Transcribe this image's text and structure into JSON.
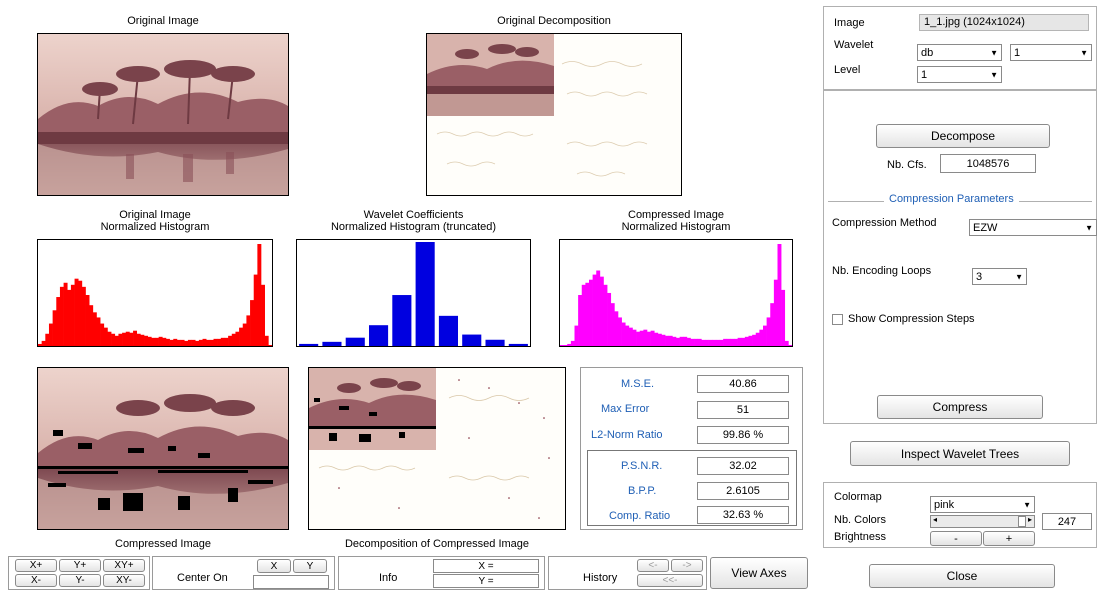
{
  "captions": {
    "original_image": "Original Image",
    "original_decomposition": "Original Decomposition",
    "orig_hist_1": "Original Image",
    "orig_hist_2": "Normalized Histogram",
    "coef_hist_1": "Wavelet Coefficients",
    "coef_hist_2": "Normalized Histogram (truncated)",
    "comp_hist_1": "Compressed Image",
    "comp_hist_2": "Normalized Histogram",
    "compressed_image": "Compressed Image",
    "decomp_compressed": "Decomposition of Compressed Image"
  },
  "metrics": {
    "mse_label": "M.S.E.",
    "mse": "40.86",
    "maxerr_label": "Max Error",
    "maxerr": "51",
    "l2_label": "L2-Norm Ratio",
    "l2": "99.86 %",
    "psnr_label": "P.S.N.R.",
    "psnr": "32.02",
    "bpp_label": "B.P.P.",
    "bpp": "2.6105",
    "ratio_label": "Comp. Ratio",
    "ratio": "32.63 %"
  },
  "panel": {
    "image_label": "Image",
    "image_value": "1_1.jpg  (1024x1024)",
    "wavelet_label": "Wavelet",
    "wavelet_family": "db",
    "wavelet_order": "1",
    "level_label": "Level",
    "level_value": "1",
    "decompose_button": "Decompose",
    "nbcfs_label": "Nb. Cfs.",
    "nbcfs_value": "1048576",
    "compression_params_title": "Compression Parameters",
    "method_label": "Compression Method",
    "method_value": "EZW",
    "loops_label": "Nb. Encoding Loops",
    "loops_value": "3",
    "show_steps_label": "Show Compression Steps",
    "compress_button": "Compress",
    "inspect_button": "Inspect Wavelet Trees",
    "colormap_label": "Colormap",
    "colormap_value": "pink",
    "nbcolors_label": "Nb. Colors",
    "nbcolors_value": "247",
    "brightness_label": "Brightness",
    "bright_minus": "-",
    "bright_plus": "+",
    "close_button": "Close",
    "nbcolors_fraction": 0.97
  },
  "toolbar": {
    "xplus": "X+",
    "yplus": "Y+",
    "xyplus": "XY+",
    "xminus": "X-",
    "yminus": "Y-",
    "xyminus": "XY-",
    "center_on": "Center On",
    "x_btn": "X",
    "y_btn": "Y",
    "info": "Info",
    "x_eq": "X =",
    "y_eq": "Y =",
    "history": "History",
    "hist_back": "<-",
    "hist_fwd": "->",
    "hist_first": "<<-",
    "view_axes": "View Axes"
  },
  "colors": {
    "red_hist": "#ff0000",
    "blue_hist": "#0000e0",
    "magenta_hist": "#ff00ff",
    "image_sky": "#e8c8c0",
    "image_water": "#8a4a52",
    "blue_text": "#1f5fb5"
  },
  "chart_data": [
    {
      "type": "area",
      "title": "Original Image Normalized Histogram",
      "x": [
        0,
        1,
        2,
        3,
        4,
        5,
        6,
        7,
        8,
        9,
        10,
        11,
        12,
        13,
        14,
        15,
        16,
        17,
        18,
        19,
        20,
        21,
        22,
        23,
        24,
        25,
        26,
        27,
        28,
        29,
        30,
        31,
        32,
        33,
        34,
        35,
        36,
        37,
        38,
        39,
        40,
        41,
        42,
        43,
        44,
        45,
        46,
        47,
        48,
        49,
        50,
        51,
        52,
        53,
        54,
        55,
        56,
        57,
        58,
        59,
        60,
        61,
        62,
        63
      ],
      "values": [
        0.02,
        0.05,
        0.12,
        0.22,
        0.35,
        0.48,
        0.58,
        0.62,
        0.55,
        0.6,
        0.66,
        0.64,
        0.58,
        0.5,
        0.4,
        0.33,
        0.28,
        0.22,
        0.18,
        0.14,
        0.12,
        0.1,
        0.12,
        0.13,
        0.14,
        0.13,
        0.15,
        0.12,
        0.11,
        0.1,
        0.09,
        0.08,
        0.08,
        0.09,
        0.08,
        0.07,
        0.06,
        0.07,
        0.06,
        0.06,
        0.05,
        0.06,
        0.06,
        0.05,
        0.06,
        0.07,
        0.06,
        0.06,
        0.07,
        0.07,
        0.08,
        0.08,
        0.1,
        0.12,
        0.14,
        0.18,
        0.22,
        0.3,
        0.45,
        0.7,
        1.0,
        0.6,
        0.1,
        0.0
      ]
    },
    {
      "type": "bar",
      "title": "Wavelet Coefficients Normalized Histogram (truncated)",
      "categories": [
        "1",
        "2",
        "3",
        "4",
        "5",
        "6",
        "7",
        "8",
        "9",
        "10"
      ],
      "values": [
        0.02,
        0.04,
        0.08,
        0.2,
        0.49,
        1.0,
        0.29,
        0.11,
        0.06,
        0.02
      ]
    },
    {
      "type": "area",
      "title": "Compressed Image Normalized Histogram",
      "x": [
        0,
        1,
        2,
        3,
        4,
        5,
        6,
        7,
        8,
        9,
        10,
        11,
        12,
        13,
        14,
        15,
        16,
        17,
        18,
        19,
        20,
        21,
        22,
        23,
        24,
        25,
        26,
        27,
        28,
        29,
        30,
        31,
        32,
        33,
        34,
        35,
        36,
        37,
        38,
        39,
        40,
        41,
        42,
        43,
        44,
        45,
        46,
        47,
        48,
        49,
        50,
        51,
        52,
        53,
        54,
        55,
        56,
        57,
        58,
        59,
        60,
        61,
        62,
        63
      ],
      "values": [
        0.0,
        0.01,
        0.02,
        0.05,
        0.2,
        0.5,
        0.6,
        0.62,
        0.65,
        0.7,
        0.74,
        0.68,
        0.6,
        0.52,
        0.42,
        0.34,
        0.28,
        0.23,
        0.2,
        0.18,
        0.16,
        0.14,
        0.15,
        0.16,
        0.14,
        0.15,
        0.13,
        0.12,
        0.11,
        0.1,
        0.1,
        0.09,
        0.08,
        0.09,
        0.09,
        0.08,
        0.07,
        0.07,
        0.07,
        0.06,
        0.06,
        0.06,
        0.06,
        0.06,
        0.06,
        0.07,
        0.07,
        0.07,
        0.07,
        0.08,
        0.08,
        0.09,
        0.1,
        0.11,
        0.13,
        0.16,
        0.2,
        0.28,
        0.42,
        0.65,
        1.0,
        0.55,
        0.05,
        0.0
      ]
    }
  ]
}
